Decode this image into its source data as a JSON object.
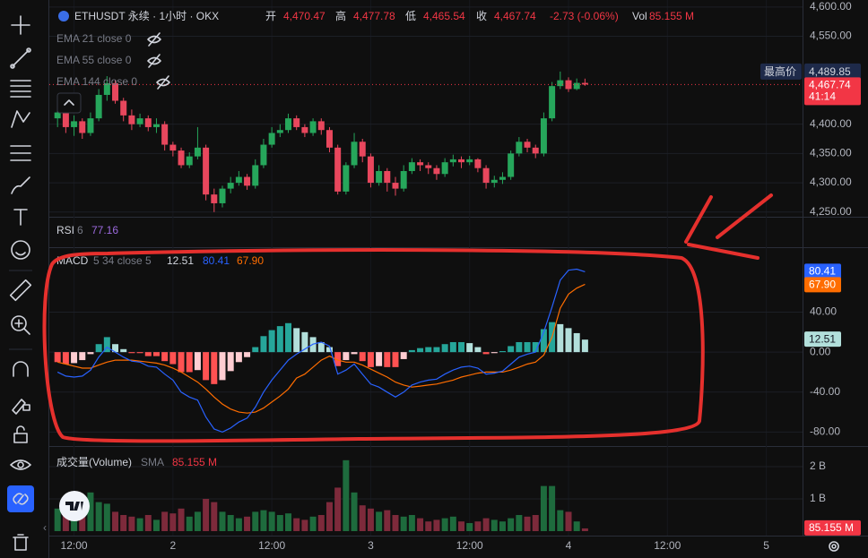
{
  "header": {
    "symbol": "ETHUSDT 永续 · 1小时 · OKX",
    "open_name": "开",
    "open": "4,470.47",
    "high_name": "高",
    "high": "4,477.78",
    "low_name": "低",
    "low": "4,465.54",
    "close_name": "收",
    "change": "-2.73 (-0.06%)",
    "vol_name": "Vol"
  },
  "chart_data": [
    {
      "type": "candlestick",
      "indicators": [
        "EMA 21 close 0",
        "EMA 55 close 0",
        "EMA 144 close 0"
      ],
      "up_color": "#26a65b",
      "down_color": "#e8475d",
      "x": [
        10,
        11,
        12,
        13,
        14,
        15,
        16,
        17,
        18,
        19,
        20,
        21,
        22,
        23,
        24,
        25,
        26,
        27,
        28,
        29,
        30,
        31,
        32,
        33,
        34,
        35,
        36,
        37,
        38,
        39,
        40,
        41,
        42,
        43,
        44,
        45,
        46,
        47,
        48,
        49,
        50,
        51,
        52,
        53,
        54,
        55,
        56,
        57,
        58,
        59,
        60,
        61,
        62,
        63,
        64,
        65,
        66,
        67,
        68,
        69,
        70,
        71,
        72,
        73,
        74
      ],
      "open": [
        4410,
        4420,
        4395,
        4405,
        4385,
        4410,
        4450,
        4470,
        4440,
        4415,
        4400,
        4410,
        4395,
        4400,
        4365,
        4355,
        4330,
        4345,
        4360,
        4280,
        4265,
        4290,
        4300,
        4310,
        4295,
        4330,
        4365,
        4385,
        4390,
        4410,
        4395,
        4385,
        4405,
        4390,
        4360,
        4285,
        4330,
        4370,
        4345,
        4300,
        4320,
        4300,
        4290,
        4320,
        4335,
        4330,
        4325,
        4315,
        4335,
        4340,
        4335,
        4340,
        4325,
        4300,
        4305,
        4310,
        4350,
        4370,
        4360,
        4350,
        4410,
        4465,
        4475,
        4460,
        4470.47
      ],
      "high": [
        4430,
        4425,
        4415,
        4410,
        4420,
        4460,
        4482,
        4475,
        4445,
        4425,
        4418,
        4415,
        4410,
        4405,
        4370,
        4360,
        4352,
        4395,
        4365,
        4290,
        4295,
        4310,
        4320,
        4315,
        4340,
        4375,
        4395,
        4400,
        4418,
        4415,
        4400,
        4410,
        4410,
        4395,
        4365,
        4335,
        4385,
        4375,
        4350,
        4330,
        4325,
        4310,
        4330,
        4342,
        4340,
        4335,
        4330,
        4342,
        4348,
        4345,
        4346,
        4342,
        4330,
        4312,
        4318,
        4355,
        4378,
        4375,
        4365,
        4420,
        4472,
        4489.85,
        4480,
        4478,
        4477.78
      ],
      "low": [
        4395,
        4385,
        4380,
        4375,
        4380,
        4405,
        4440,
        4435,
        4405,
        4390,
        4395,
        4388,
        4385,
        4355,
        4345,
        4325,
        4325,
        4340,
        4270,
        4250,
        4258,
        4282,
        4295,
        4288,
        4290,
        4325,
        4360,
        4378,
        4385,
        4390,
        4378,
        4380,
        4382,
        4352,
        4280,
        4280,
        4325,
        4335,
        4292,
        4295,
        4285,
        4278,
        4285,
        4315,
        4320,
        4315,
        4305,
        4310,
        4328,
        4325,
        4330,
        4318,
        4290,
        4292,
        4298,
        4305,
        4345,
        4352,
        4342,
        4345,
        4405,
        4460,
        4455,
        4458,
        4465.54
      ],
      "close": [
        4420,
        4395,
        4405,
        4385,
        4410,
        4450,
        4470,
        4440,
        4415,
        4400,
        4410,
        4395,
        4400,
        4365,
        4355,
        4330,
        4345,
        4360,
        4280,
        4265,
        4290,
        4300,
        4310,
        4295,
        4330,
        4365,
        4385,
        4390,
        4410,
        4395,
        4385,
        4405,
        4390,
        4360,
        4285,
        4330,
        4370,
        4345,
        4300,
        4320,
        4300,
        4290,
        4320,
        4335,
        4330,
        4325,
        4315,
        4335,
        4340,
        4335,
        4340,
        4325,
        4300,
        4305,
        4310,
        4350,
        4370,
        4360,
        4350,
        4410,
        4465,
        4475,
        4460,
        4470.47,
        4467.74
      ],
      "ylim": [
        4242,
        4612
      ],
      "yticks": [
        {
          "value": 4600,
          "label": "4,600.00"
        },
        {
          "value": 4550,
          "label": "4,550.00"
        },
        {
          "value": 4400,
          "label": "4,400.00"
        },
        {
          "value": 4350,
          "label": "4,350.00"
        },
        {
          "value": 4300,
          "label": "4,300.00"
        },
        {
          "value": 4250,
          "label": "4,250.00"
        }
      ],
      "high_marker": {
        "label": "最高价",
        "value": 4489.85,
        "value_label": "4,489.85"
      },
      "last": {
        "value": 4467.74,
        "value_label": "4,467.74",
        "countdown": "41:14"
      },
      "xlim": [
        9,
        100.4
      ],
      "xticks": [
        {
          "value": 12,
          "label": "12:00"
        },
        {
          "value": 24,
          "label": "2"
        },
        {
          "value": 36,
          "label": "12:00"
        },
        {
          "value": 48,
          "label": "3"
        },
        {
          "value": 60,
          "label": "12:00"
        },
        {
          "value": 72,
          "label": "4"
        },
        {
          "value": 84,
          "label": "12:00"
        },
        {
          "value": 96,
          "label": "5"
        }
      ]
    },
    {
      "type": "rsi",
      "name": "RSI",
      "params": "6",
      "value": 77.16
    },
    {
      "type": "macd",
      "name": "MACD",
      "params": "5 34 close 5",
      "ylim": [
        -94,
        105
      ],
      "yticks": [
        {
          "value": 40,
          "label": "40.00"
        },
        {
          "value": 0,
          "label": "0.00"
        },
        {
          "value": -40,
          "label": "-40.00"
        },
        {
          "value": -80,
          "label": "-80.00"
        }
      ],
      "histogram": {
        "last_label": "12.51",
        "colors": [
          "#26a69a",
          "#b2dfdb",
          "#ff5252",
          "#ffcdd2"
        ],
        "values": [
          -10,
          -12,
          -11,
          -8,
          -2,
          8,
          15,
          8,
          3,
          -1,
          -1,
          -4,
          -4,
          -9,
          -12,
          -20,
          -20,
          -18,
          -28,
          -32,
          -28,
          -19,
          -10,
          -5,
          5,
          16,
          22,
          26,
          29,
          24,
          20,
          15,
          10,
          5,
          -14,
          -8,
          -2,
          -9,
          -15,
          -14,
          -15,
          -15,
          -7,
          2,
          4,
          5,
          5,
          8,
          10,
          10,
          9,
          5,
          -2,
          -1,
          1,
          6,
          10,
          10,
          10,
          23,
          30,
          28,
          24,
          19,
          12.51
        ]
      },
      "macd": {
        "color": "#2962ff",
        "last_label": "80.41",
        "values": [
          -20,
          -24,
          -25,
          -24,
          -18,
          -5,
          5,
          0,
          -5,
          -9,
          -10,
          -14,
          -15,
          -22,
          -28,
          -40,
          -45,
          -48,
          -65,
          -77,
          -80,
          -76,
          -70,
          -66,
          -55,
          -40,
          -28,
          -18,
          -8,
          -2,
          3,
          8,
          10,
          6,
          -22,
          -18,
          -12,
          -22,
          -32,
          -35,
          -40,
          -45,
          -40,
          -33,
          -30,
          -28,
          -27,
          -22,
          -18,
          -15,
          -14,
          -16,
          -22,
          -21,
          -19,
          -12,
          -5,
          -2,
          0,
          20,
          45,
          72,
          82,
          83,
          80.41
        ]
      },
      "signal": {
        "color": "#ff6d00",
        "last_label": "67.90",
        "values": [
          -10,
          -12,
          -14,
          -16,
          -16,
          -13,
          -10,
          -8,
          -8,
          -8,
          -9,
          -10,
          -11,
          -13,
          -16,
          -20,
          -25,
          -30,
          -37,
          -45,
          -52,
          -57,
          -60,
          -61,
          -60,
          -56,
          -50,
          -44,
          -37,
          -26,
          -22,
          -15,
          -8,
          -4,
          -8,
          -10,
          -10,
          -13,
          -17,
          -21,
          -25,
          -30,
          -33,
          -35,
          -34,
          -33,
          -32,
          -30,
          -28,
          -25,
          -23,
          -21,
          -20,
          -20,
          -20,
          -18,
          -15,
          -12,
          -10,
          -3,
          15,
          44,
          58,
          64,
          67.9
        ]
      }
    },
    {
      "type": "volume",
      "title": "成交量(Volume)",
      "sma": "SMA",
      "last_label": "85.155 M",
      "up_color": "#1e6b3d",
      "down_color": "#7d2a3b",
      "ylim": [
        0,
        2.64
      ],
      "yticks": [
        {
          "value": 2,
          "label": "2 B"
        },
        {
          "value": 1,
          "label": "1 B"
        }
      ],
      "values": [
        0.7,
        0.9,
        0.65,
        0.8,
        1.2,
        0.9,
        0.85,
        0.6,
        0.5,
        0.45,
        0.4,
        0.5,
        0.35,
        0.6,
        0.55,
        0.7,
        0.45,
        0.6,
        1.0,
        0.9,
        0.6,
        0.5,
        0.4,
        0.45,
        0.6,
        0.65,
        0.6,
        0.5,
        0.55,
        0.4,
        0.35,
        0.45,
        0.5,
        0.9,
        1.35,
        2.2,
        1.2,
        0.8,
        0.7,
        0.6,
        0.65,
        0.5,
        0.45,
        0.5,
        0.4,
        0.3,
        0.35,
        0.4,
        0.45,
        0.3,
        0.25,
        0.3,
        0.4,
        0.35,
        0.3,
        0.4,
        0.5,
        0.45,
        0.5,
        1.4,
        1.4,
        0.65,
        0.6,
        0.3,
        0.085155
      ]
    }
  ]
}
